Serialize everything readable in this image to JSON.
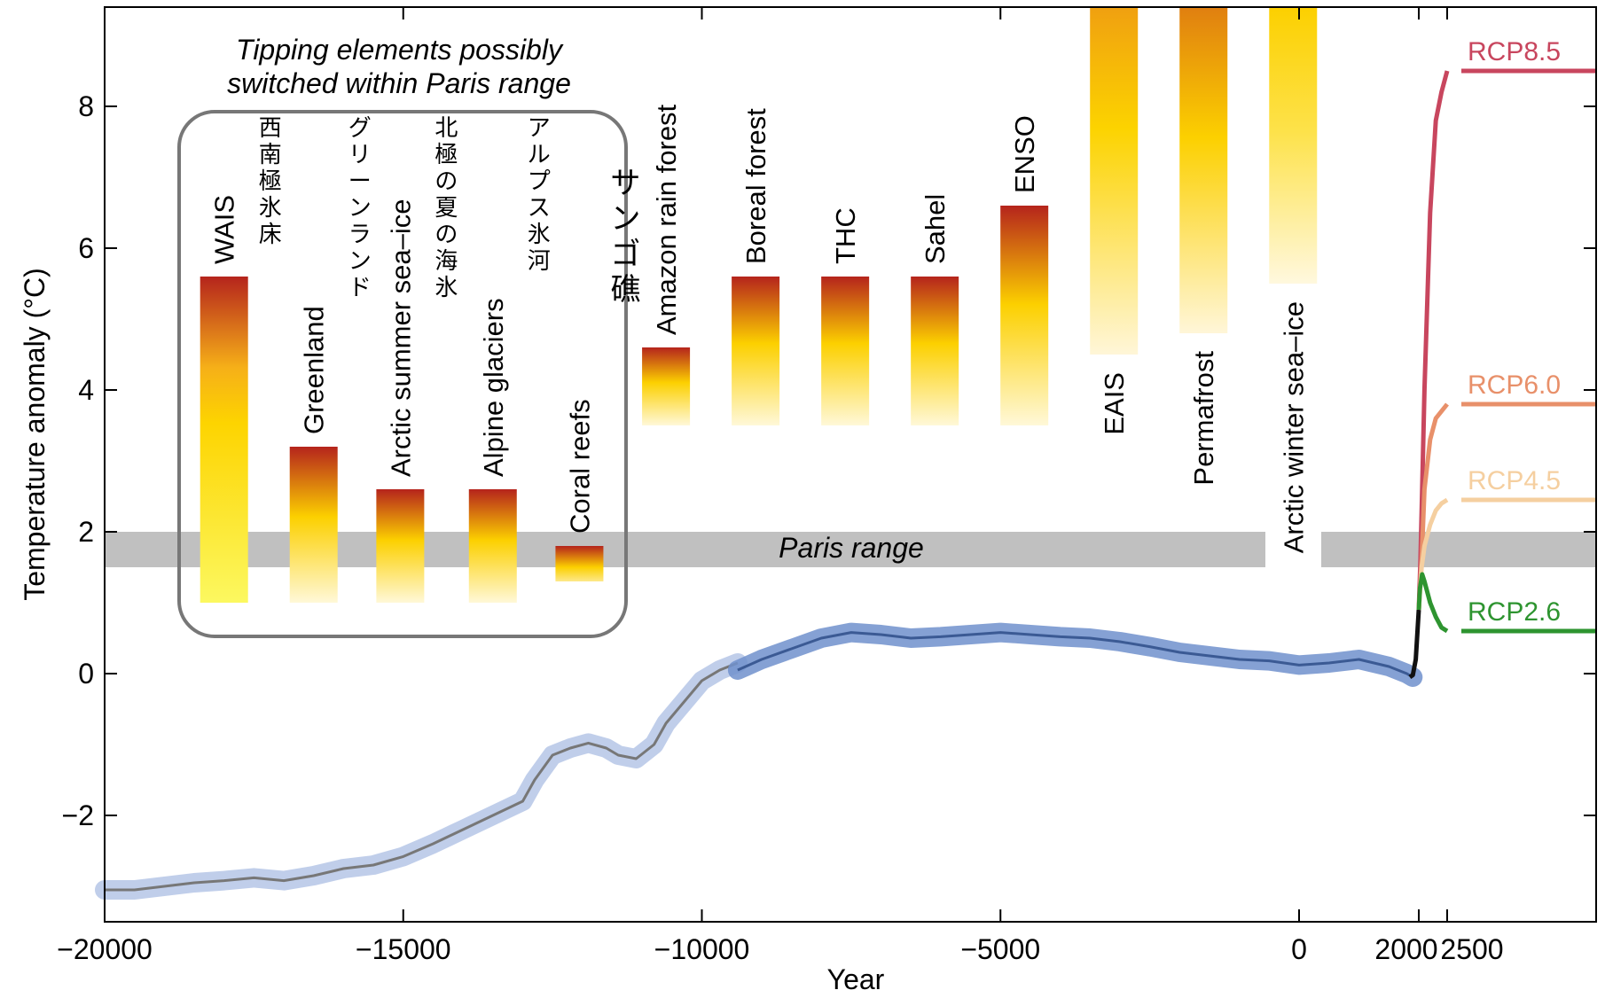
{
  "chart_data": {
    "type": "line",
    "xlabel": "Year",
    "ylabel": "Temperature anomaly (°C)",
    "xlim": [
      -20000,
      4800
    ],
    "ylim": [
      -3.6,
      9.4
    ],
    "x_ticks": [
      -20000,
      -15000,
      -10000,
      -5000,
      0,
      2000,
      2500
    ],
    "x_tick_labels": [
      "−20000",
      "−15000",
      "−10000",
      "−5000",
      "0",
      "2000",
      "2500"
    ],
    "y_ticks": [
      -2,
      0,
      2,
      4,
      6,
      8
    ],
    "y_tick_labels": [
      "−2",
      "0",
      "2",
      "4",
      "6",
      "8"
    ],
    "box_title": [
      "Tipping elements possibly",
      "switched within Paris range"
    ],
    "paris_range": {
      "label": "Paris range",
      "y0": 1.5,
      "y1": 2.0
    },
    "tipping_elements": [
      {
        "name": "WAIS",
        "jp": "西南極氷床",
        "x": -18000,
        "low": 1.0,
        "high": 5.6,
        "colors": "red-yellow-light"
      },
      {
        "name": "Greenland",
        "jp": "グリーンランド",
        "x": -16500,
        "low": 1.0,
        "high": 3.2,
        "colors": "red-yellow-fade"
      },
      {
        "name": "Arctic summer sea–ice",
        "jp": "北極の夏の海氷",
        "x": -15050,
        "low": 1.0,
        "high": 2.6,
        "colors": "red-yellow-fade"
      },
      {
        "name": "Alpine glaciers",
        "jp": "アルプス氷河",
        "x": -13500,
        "low": 1.0,
        "high": 2.6,
        "colors": "red-yellow-fade"
      },
      {
        "name": "Coral reefs",
        "jp": "サンゴ礁",
        "x": -12050,
        "low": 1.3,
        "high": 1.8,
        "colors": "red-yellow"
      },
      {
        "name": "Amazon rain forest",
        "x": -10600,
        "low": 3.5,
        "high": 4.6,
        "colors": "red-yellow-fade"
      },
      {
        "name": "Boreal forest",
        "x": -9100,
        "low": 3.5,
        "high": 5.6,
        "colors": "red-yellow-fade"
      },
      {
        "name": "THC",
        "x": -7600,
        "low": 3.5,
        "high": 5.6,
        "colors": "red-yellow-fade"
      },
      {
        "name": "Sahel",
        "x": -6100,
        "low": 3.5,
        "high": 5.6,
        "colors": "red-yellow-fade"
      },
      {
        "name": "ENSO",
        "x": -4600,
        "low": 3.5,
        "high": 6.6,
        "colors": "red-yellow-fade"
      },
      {
        "name": "EAIS",
        "x": -3100,
        "low": 4.5,
        "high": 9.4,
        "colors": "orange-yellow-fade"
      },
      {
        "name": "Permafrost",
        "x": -1600,
        "low": 4.8,
        "high": 9.4,
        "colors": "darkorange-yellow-fade"
      },
      {
        "name": "Arctic winter sea–ice",
        "x": -100,
        "low": 5.5,
        "high": 9.4,
        "colors": "yellow-fade"
      }
    ],
    "series": [
      {
        "name": "",
        "color": "#777777",
        "band_color": "#b5c6e6",
        "x": [
          -20000,
          -19500,
          -19000,
          -18500,
          -18000,
          -17500,
          -17000,
          -16500,
          -16000,
          -15500,
          -15000,
          -14500,
          -14000,
          -13500,
          -13000,
          -12800,
          -12500,
          -12200,
          -11900,
          -11600,
          -11400,
          -11100,
          -10800,
          -10600,
          -10300,
          -10000,
          -9700,
          -9400
        ],
        "y": [
          -3.05,
          -3.05,
          -3.0,
          -2.95,
          -2.92,
          -2.88,
          -2.92,
          -2.85,
          -2.75,
          -2.7,
          -2.58,
          -2.4,
          -2.2,
          -2.0,
          -1.8,
          -1.5,
          -1.15,
          -1.05,
          -0.98,
          -1.05,
          -1.15,
          -1.2,
          -1.0,
          -0.7,
          -0.4,
          -0.1,
          0.05,
          0.15
        ]
      },
      {
        "name": "",
        "color": "#3b5a94",
        "band_color": "#7090cc",
        "x": [
          -9400,
          -9000,
          -8500,
          -8000,
          -7500,
          -7000,
          -6500,
          -6000,
          -5500,
          -5000,
          -4500,
          -4000,
          -3500,
          -3000,
          -2500,
          -2000,
          -1500,
          -1000,
          -500,
          0,
          500,
          1000,
          1500,
          1800,
          1900
        ],
        "y": [
          0.05,
          0.2,
          0.35,
          0.5,
          0.58,
          0.55,
          0.5,
          0.52,
          0.55,
          0.58,
          0.55,
          0.52,
          0.5,
          0.45,
          0.38,
          0.3,
          0.25,
          0.2,
          0.18,
          0.12,
          0.15,
          0.2,
          0.1,
          0.0,
          -0.05
        ]
      },
      {
        "name": "",
        "color": "#111111",
        "x": [
          1850,
          1900,
          1950,
          2000
        ],
        "y": [
          -0.05,
          -0.02,
          0.2,
          0.9
        ]
      },
      {
        "name": "RCP8.5",
        "color": "#c8465e",
        "x": [
          2000,
          2030,
          2060,
          2100,
          2200,
          2300,
          2400,
          2500
        ],
        "y": [
          0.9,
          1.6,
          2.6,
          4.0,
          6.5,
          7.8,
          8.2,
          8.5
        ],
        "extend_to_label": true
      },
      {
        "name": "RCP6.0",
        "color": "#e8906a",
        "x": [
          2000,
          2050,
          2100,
          2200,
          2300,
          2400,
          2500
        ],
        "y": [
          0.9,
          1.6,
          2.6,
          3.3,
          3.6,
          3.7,
          3.8
        ],
        "extend_to_label": true
      },
      {
        "name": "RCP4.5",
        "color": "#f5cfa0",
        "x": [
          2000,
          2050,
          2100,
          2200,
          2300,
          2400,
          2500
        ],
        "y": [
          0.9,
          1.5,
          1.8,
          2.1,
          2.3,
          2.4,
          2.45
        ],
        "extend_to_label": true
      },
      {
        "name": "RCP2.6",
        "color": "#2e9430",
        "x": [
          2000,
          2020,
          2060,
          2100,
          2200,
          2300,
          2400,
          2500
        ],
        "y": [
          0.9,
          1.2,
          1.4,
          1.3,
          1.0,
          0.8,
          0.65,
          0.6
        ],
        "extend_to_label": true
      }
    ]
  }
}
